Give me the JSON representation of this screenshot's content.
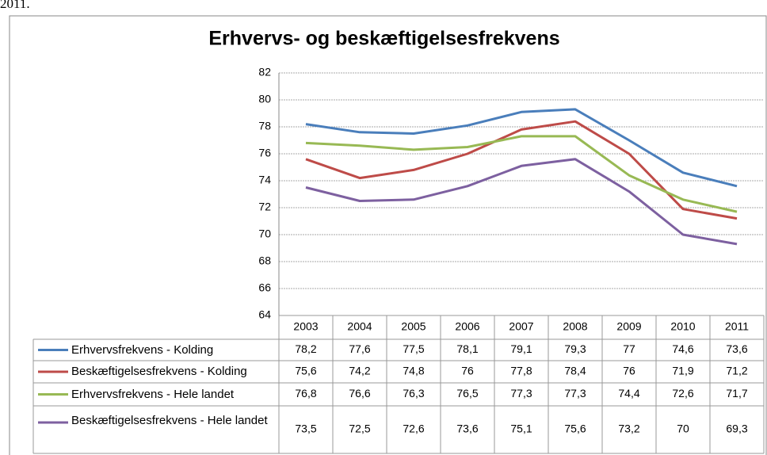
{
  "top_text": "2011.",
  "chart_data": {
    "type": "line",
    "title": "Erhvervs- og beskæftigelsesfrekvens",
    "categories": [
      "2003",
      "2004",
      "2005",
      "2006",
      "2007",
      "2008",
      "2009",
      "2010",
      "2011"
    ],
    "series": [
      {
        "name": "Erhvervsfrekvens - Kolding",
        "color": "#4a7ebb",
        "values": [
          78.2,
          77.6,
          77.5,
          78.1,
          79.1,
          79.3,
          77,
          74.6,
          73.6
        ],
        "value_labels": [
          "78,2",
          "77,6",
          "77,5",
          "78,1",
          "79,1",
          "79,3",
          "77",
          "74,6",
          "73,6"
        ]
      },
      {
        "name": "Beskæftigelsesfrekvens - Kolding",
        "color": "#be4b48",
        "values": [
          75.6,
          74.2,
          74.8,
          76,
          77.8,
          78.4,
          76,
          71.9,
          71.2
        ],
        "value_labels": [
          "75,6",
          "74,2",
          "74,8",
          "76",
          "77,8",
          "78,4",
          "76",
          "71,9",
          "71,2"
        ]
      },
      {
        "name": "Erhvervsfrekvens - Hele landet",
        "color": "#98b954",
        "values": [
          76.8,
          76.6,
          76.3,
          76.5,
          77.3,
          77.3,
          74.4,
          72.6,
          71.7
        ],
        "value_labels": [
          "76,8",
          "76,6",
          "76,3",
          "76,5",
          "77,3",
          "77,3",
          "74,4",
          "72,6",
          "71,7"
        ]
      },
      {
        "name": "Beskæftigelsesfrekvens - Hele landet",
        "color": "#7d60a0",
        "values": [
          73.5,
          72.5,
          72.6,
          73.6,
          75.1,
          75.6,
          73.2,
          70,
          69.3
        ],
        "value_labels": [
          "73,5",
          "72,5",
          "72,6",
          "73,6",
          "75,1",
          "75,6",
          "73,2",
          "70",
          "69,3"
        ]
      }
    ],
    "ylim": [
      64,
      82
    ],
    "yticks": [
      64,
      66,
      68,
      70,
      72,
      74,
      76,
      78,
      80,
      82
    ],
    "grid": true
  }
}
